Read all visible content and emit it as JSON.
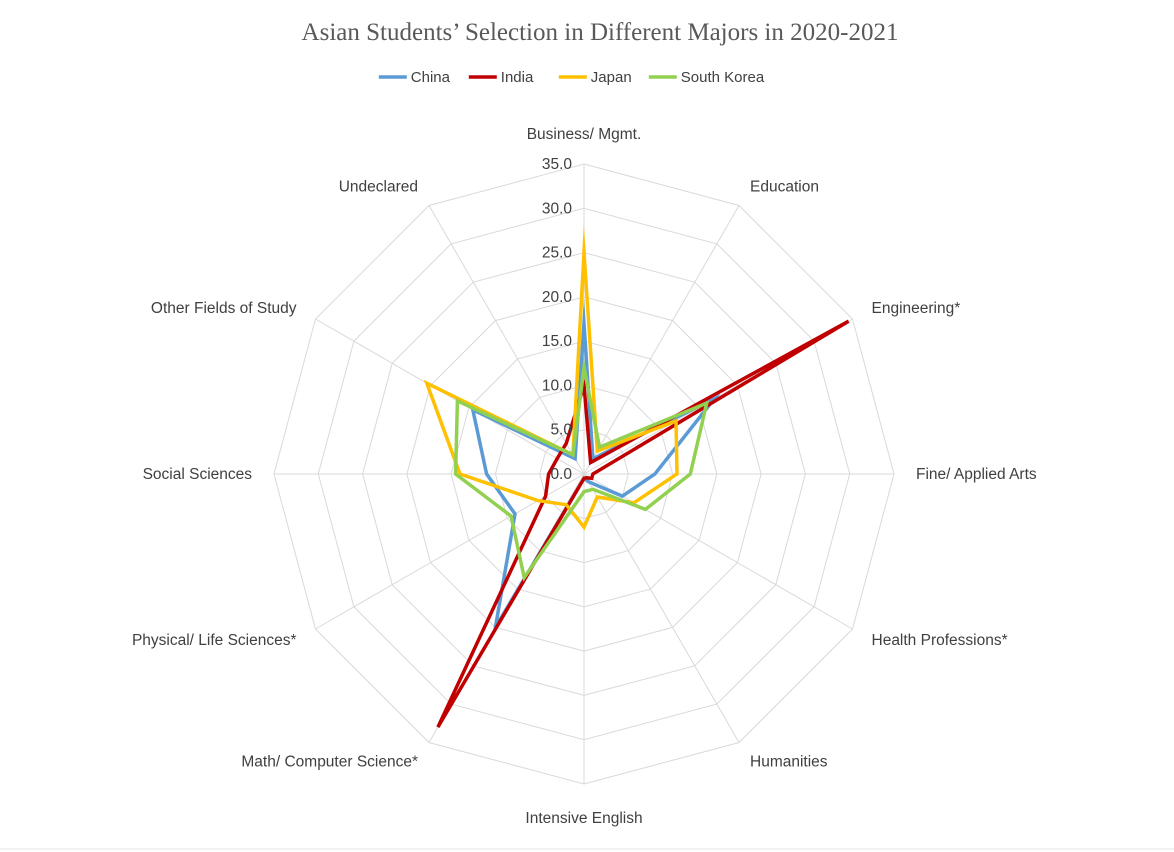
{
  "chart_data": {
    "type": "radar",
    "title": "Asian Students’ Selection in Different Majors in 2020-2021",
    "categories": [
      "Business/ Mgmt.",
      "Education",
      "Engineering*",
      "Fine/ Applied Arts",
      "Health Professions*",
      "Humanities",
      "Intensive English",
      "Math/ Computer Science*",
      "Physical/ Life Sciences*",
      "Social Sciences",
      "Other Fields of Study",
      "Undeclared"
    ],
    "r_ticks": [
      "0.0",
      "5.0",
      "10.0",
      "15.0",
      "20.0",
      "25.0",
      "30.0",
      "35.0"
    ],
    "r_range": [
      0,
      35
    ],
    "grid": true,
    "legend_position": "top",
    "series": [
      {
        "name": "China",
        "color": "#5b9bd5",
        "values": [
          17.0,
          2.0,
          17.0,
          8.0,
          5.0,
          1.0,
          0.5,
          20.0,
          9.0,
          11.0,
          14.5,
          2.0
        ]
      },
      {
        "name": "India",
        "color": "#c00000",
        "values": [
          10.0,
          1.5,
          34.5,
          1.0,
          1.0,
          0.5,
          0.5,
          33.0,
          5.0,
          4.0,
          3.5,
          4.0
        ]
      },
      {
        "name": "Japan",
        "color": "#ffc000",
        "values": [
          25.0,
          3.0,
          12.0,
          10.5,
          6.5,
          3.0,
          6.0,
          4.0,
          6.0,
          14.0,
          20.5,
          2.5
        ]
      },
      {
        "name": "South Korea",
        "color": "#92d050",
        "values": [
          12.0,
          3.5,
          16.0,
          12.0,
          8.0,
          2.0,
          2.0,
          13.5,
          9.5,
          14.5,
          16.5,
          2.5
        ]
      }
    ]
  }
}
